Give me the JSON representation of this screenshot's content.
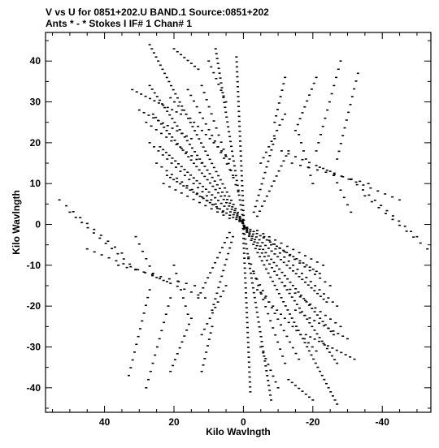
{
  "header": {
    "line1": "V vs U for 0851+202.U BAND.1   Source:0851+202",
    "line2": "Ants * - *    Stokes I   IF# 1   Chan# 1"
  },
  "chart_data": {
    "type": "scatter",
    "xlabel": "Kilo Wavlngth",
    "ylabel": "Kilo Wavlngth",
    "xlim": [
      57,
      -54
    ],
    "ylim": [
      -46,
      47
    ],
    "x_axis_reversed": true,
    "xticks": [
      40,
      20,
      0,
      -20,
      -40
    ],
    "yticks": [
      40,
      30,
      20,
      10,
      0,
      -10,
      -20,
      -30,
      -40
    ],
    "xtick_labels": [
      "40",
      "20",
      "0",
      "-20",
      "-40"
    ],
    "ytick_labels": [
      "40",
      "30",
      "20",
      "10",
      "0",
      "-10",
      "-20",
      "-30",
      "-40"
    ],
    "grid": false,
    "marker": "short-dash",
    "color": "#000000",
    "point_symmetry": "hermitian (u,v) and (-u,-v)",
    "tracks": [
      {
        "u0": 27.0,
        "v0": 44.0,
        "u1": 0.4,
        "v1": 0.9,
        "n": 44
      },
      {
        "u0": 27.0,
        "v0": 34.0,
        "u1": 0.3,
        "v1": 0.7,
        "n": 38
      },
      {
        "u0": 26.0,
        "v0": 27.0,
        "u1": 0.2,
        "v1": 0.5,
        "n": 34
      },
      {
        "u0": 24.0,
        "v0": 19.0,
        "u1": 0.2,
        "v1": 0.3,
        "n": 28
      },
      {
        "u0": 22.0,
        "v0": 12.0,
        "u1": 0.1,
        "v1": 0.2,
        "n": 24
      },
      {
        "u0": 8.0,
        "v0": 43.0,
        "u1": 0.1,
        "v1": 1.2,
        "n": 36
      },
      {
        "u0": 2.0,
        "v0": 41.0,
        "u1": -0.1,
        "v1": 1.0,
        "n": 34
      },
      {
        "u0": 32.0,
        "v0": 33.0,
        "u1": 18.0,
        "v1": 27.0,
        "n": 12
      },
      {
        "u0": 30.0,
        "v0": 28.0,
        "u1": 15.0,
        "v1": 21.0,
        "n": 12
      },
      {
        "u0": 28.0,
        "v0": 25.0,
        "u1": 12.0,
        "v1": 15.0,
        "n": 12
      },
      {
        "u0": 21.0,
        "v0": 31.0,
        "u1": 4.0,
        "v1": 16.0,
        "n": 16
      },
      {
        "u0": 16.0,
        "v0": 33.0,
        "u1": 3.0,
        "v1": 12.0,
        "n": 16
      },
      {
        "u0": 12.0,
        "v0": 34.0,
        "u1": 1.5,
        "v1": 8.0,
        "n": 16
      },
      {
        "u0": 20.0,
        "v0": 43.0,
        "u1": 13.0,
        "v1": 38.0,
        "n": 8
      },
      {
        "u0": 10.0,
        "v0": 40.0,
        "u1": 5.0,
        "v1": 30.0,
        "n": 8
      },
      {
        "u0": 27.0,
        "v0": 20.0,
        "u1": 8.0,
        "v1": 5.0,
        "n": 16
      },
      {
        "u0": 25.0,
        "v0": 15.0,
        "u1": 6.0,
        "v1": 3.0,
        "n": 14
      },
      {
        "u0": 23.0,
        "v0": 10.0,
        "u1": 4.0,
        "v1": 1.5,
        "n": 12
      },
      {
        "u0": -9.0,
        "v0": 21.0,
        "u1": -3.0,
        "v1": 3.0,
        "n": 14
      },
      {
        "u0": -13.0,
        "v0": 18.0,
        "u1": -4.0,
        "v1": 2.0,
        "n": 14
      },
      {
        "u0": -12.0,
        "v0": 27.0,
        "u1": -5.0,
        "v1": 15.0,
        "n": 10
      },
      {
        "u0": -12.0,
        "v0": 36.0,
        "u1": -9.0,
        "v1": 25.0,
        "n": 8
      },
      {
        "u0": -21.0,
        "v0": 36.0,
        "u1": -15.0,
        "v1": 23.0,
        "n": 10
      },
      {
        "u0": -28.0,
        "v0": 40.0,
        "u1": -21.0,
        "v1": 18.0,
        "n": 12
      },
      {
        "u0": -33.0,
        "v0": 37.0,
        "u1": -27.0,
        "v1": 16.0,
        "n": 12
      },
      {
        "u0": -11.0,
        "v0": 18.0,
        "u1": -25.0,
        "v1": 13.0,
        "n": 8
      },
      {
        "u0": -14.0,
        "v0": 15.0,
        "u1": -36.0,
        "v1": 10.0,
        "n": 10
      },
      {
        "u0": -22.0,
        "v0": 14.0,
        "u1": -45.0,
        "v1": 6.0,
        "n": 12
      },
      {
        "u0": -31.0,
        "v0": 11.0,
        "u1": -50.0,
        "v1": -3.0,
        "n": 12
      },
      {
        "u0": -35.0,
        "v0": 7.0,
        "u1": -53.0,
        "v1": -6.0,
        "n": 10
      },
      {
        "u0": -26.0,
        "v0": 12.0,
        "u1": -31.0,
        "v1": 3.0,
        "n": 6
      },
      {
        "u0": -16.0,
        "v0": 22.0,
        "u1": -20.0,
        "v1": 10.0,
        "n": 7
      }
    ]
  }
}
